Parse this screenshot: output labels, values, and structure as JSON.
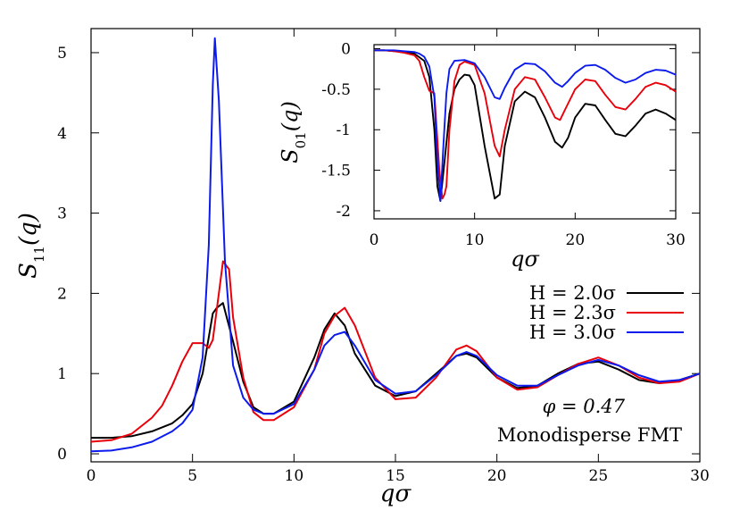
{
  "chart_data": [
    {
      "type": "line",
      "xlabel": "qσ",
      "ylabel": "S11(q)",
      "xlim": [
        0,
        30
      ],
      "ylim": [
        -0.1,
        5.3
      ],
      "xticks": [
        0,
        5,
        10,
        15,
        20,
        25,
        30
      ],
      "yticks": [
        0,
        1,
        2,
        3,
        4,
        5
      ],
      "legend_position": "middle-right",
      "annotations": [
        "φ = 0.47",
        "Monodisperse FMT"
      ],
      "series": [
        {
          "name": "H = 2.0σ",
          "color": "#000000",
          "x": [
            0,
            1,
            2,
            3,
            4,
            4.5,
            5,
            5.5,
            6,
            6.2,
            6.5,
            7,
            7.5,
            8,
            8.5,
            9,
            10,
            11,
            11.5,
            12,
            12.5,
            13,
            14,
            15,
            16,
            17,
            18,
            18.5,
            19,
            20,
            21,
            22,
            23,
            24,
            25,
            26,
            27,
            28,
            29,
            30
          ],
          "y": [
            0.2,
            0.2,
            0.22,
            0.28,
            0.38,
            0.48,
            0.62,
            1.0,
            1.75,
            1.82,
            1.88,
            1.4,
            0.9,
            0.58,
            0.5,
            0.5,
            0.65,
            1.2,
            1.55,
            1.75,
            1.6,
            1.25,
            0.85,
            0.72,
            0.78,
            1.0,
            1.22,
            1.25,
            1.2,
            0.95,
            0.82,
            0.85,
            1.0,
            1.12,
            1.15,
            1.05,
            0.92,
            0.88,
            0.92,
            1.0
          ]
        },
        {
          "name": "H = 2.3σ",
          "color": "#e8000b",
          "x": [
            0,
            1,
            2,
            3,
            3.5,
            4,
            4.5,
            5,
            5.5,
            5.8,
            6,
            6.3,
            6.5,
            6.8,
            7,
            7.5,
            8,
            8.5,
            9,
            10,
            11,
            11.5,
            12,
            12.5,
            13,
            14,
            15,
            16,
            17,
            18,
            18.5,
            19,
            20,
            21,
            22,
            23,
            24,
            25,
            26,
            27,
            28,
            29,
            30
          ],
          "y": [
            0.15,
            0.17,
            0.25,
            0.45,
            0.6,
            0.85,
            1.15,
            1.38,
            1.38,
            1.32,
            1.42,
            2.0,
            2.4,
            2.3,
            1.7,
            0.95,
            0.52,
            0.42,
            0.42,
            0.58,
            1.05,
            1.5,
            1.72,
            1.82,
            1.6,
            0.95,
            0.68,
            0.7,
            0.95,
            1.3,
            1.35,
            1.28,
            0.95,
            0.8,
            0.83,
            0.98,
            1.12,
            1.2,
            1.1,
            0.95,
            0.88,
            0.9,
            1.0
          ]
        },
        {
          "name": "H = 3.0σ",
          "color": "#0c1bed",
          "x": [
            0,
            1,
            2,
            3,
            4,
            4.5,
            5,
            5.5,
            5.8,
            6,
            6.1,
            6.3,
            6.6,
            7,
            7.5,
            8,
            8.5,
            9,
            10,
            11,
            11.5,
            12,
            12.5,
            13,
            14,
            15,
            16,
            17,
            18,
            18.5,
            19,
            20,
            21,
            22,
            23,
            24,
            25,
            26,
            27,
            28,
            29,
            30
          ],
          "y": [
            0.03,
            0.04,
            0.08,
            0.15,
            0.28,
            0.38,
            0.55,
            1.2,
            2.6,
            4.6,
            5.18,
            4.4,
            2.4,
            1.1,
            0.7,
            0.55,
            0.5,
            0.5,
            0.62,
            1.05,
            1.35,
            1.48,
            1.52,
            1.35,
            0.92,
            0.75,
            0.78,
            0.98,
            1.22,
            1.27,
            1.22,
            0.98,
            0.85,
            0.85,
            0.98,
            1.1,
            1.17,
            1.1,
            0.98,
            0.9,
            0.92,
            1.0
          ]
        }
      ]
    },
    {
      "type": "line",
      "xlabel": "qσ",
      "ylabel": "S01(q)",
      "xlim": [
        0,
        30
      ],
      "ylim": [
        -2.1,
        0.05
      ],
      "xticks": [
        0,
        10,
        20,
        30
      ],
      "yticks": [
        0,
        -0.5,
        -1,
        -1.5,
        -2
      ],
      "series": [
        {
          "name": "H = 2.0σ",
          "color": "#000000",
          "x": [
            0,
            1,
            2,
            3,
            4,
            5,
            5.5,
            6,
            6.3,
            6.6,
            7,
            7.5,
            8,
            8.5,
            9,
            9.5,
            10,
            11,
            12,
            12.5,
            13,
            14,
            15,
            16,
            17,
            18,
            18.7,
            19.3,
            20,
            21,
            22,
            23,
            24,
            25,
            26,
            27,
            28,
            29,
            30
          ],
          "y": [
            -0.02,
            -0.02,
            -0.03,
            -0.04,
            -0.06,
            -0.15,
            -0.35,
            -1.0,
            -1.7,
            -1.88,
            -1.4,
            -0.8,
            -0.5,
            -0.38,
            -0.32,
            -0.33,
            -0.45,
            -1.2,
            -1.85,
            -1.8,
            -1.2,
            -0.65,
            -0.53,
            -0.6,
            -0.85,
            -1.15,
            -1.22,
            -1.1,
            -0.85,
            -0.68,
            -0.7,
            -0.88,
            -1.05,
            -1.08,
            -0.95,
            -0.8,
            -0.75,
            -0.8,
            -0.88
          ]
        },
        {
          "name": "H = 2.3σ",
          "color": "#e8000b",
          "x": [
            0,
            1,
            2,
            3,
            4,
            4.5,
            5,
            5.5,
            6,
            6.5,
            6.8,
            7,
            7.2,
            7.5,
            8,
            8.5,
            9,
            10,
            11,
            12,
            12.5,
            13,
            14,
            15,
            16,
            17,
            18,
            18.5,
            19,
            20,
            21,
            22,
            23,
            24,
            25,
            26,
            27,
            28,
            29,
            30
          ],
          "y": [
            -0.02,
            -0.02,
            -0.03,
            -0.05,
            -0.08,
            -0.15,
            -0.35,
            -0.52,
            -0.55,
            -1.5,
            -1.85,
            -1.8,
            -1.7,
            -1.0,
            -0.4,
            -0.2,
            -0.16,
            -0.2,
            -0.55,
            -1.2,
            -1.33,
            -1.0,
            -0.5,
            -0.35,
            -0.38,
            -0.6,
            -0.85,
            -0.88,
            -0.75,
            -0.5,
            -0.38,
            -0.4,
            -0.57,
            -0.72,
            -0.75,
            -0.62,
            -0.47,
            -0.42,
            -0.45,
            -0.53
          ]
        },
        {
          "name": "H = 3.0σ",
          "color": "#0c1bed",
          "x": [
            0,
            1,
            2,
            3,
            4,
            4.5,
            5,
            5.5,
            6,
            6.3,
            6.6,
            6.9,
            7.2,
            7.5,
            8,
            9,
            10,
            11,
            12,
            12.5,
            13,
            14,
            15,
            16,
            17,
            18,
            18.7,
            19.3,
            20,
            21,
            22,
            23,
            24,
            25,
            26,
            27,
            28,
            29,
            30
          ],
          "y": [
            -0.02,
            -0.02,
            -0.02,
            -0.03,
            -0.04,
            -0.06,
            -0.1,
            -0.22,
            -0.6,
            -1.4,
            -1.88,
            -1.2,
            -0.55,
            -0.25,
            -0.15,
            -0.14,
            -0.18,
            -0.35,
            -0.6,
            -0.62,
            -0.48,
            -0.26,
            -0.18,
            -0.19,
            -0.28,
            -0.42,
            -0.47,
            -0.4,
            -0.3,
            -0.21,
            -0.2,
            -0.26,
            -0.36,
            -0.42,
            -0.38,
            -0.3,
            -0.26,
            -0.27,
            -0.32
          ]
        }
      ]
    }
  ]
}
